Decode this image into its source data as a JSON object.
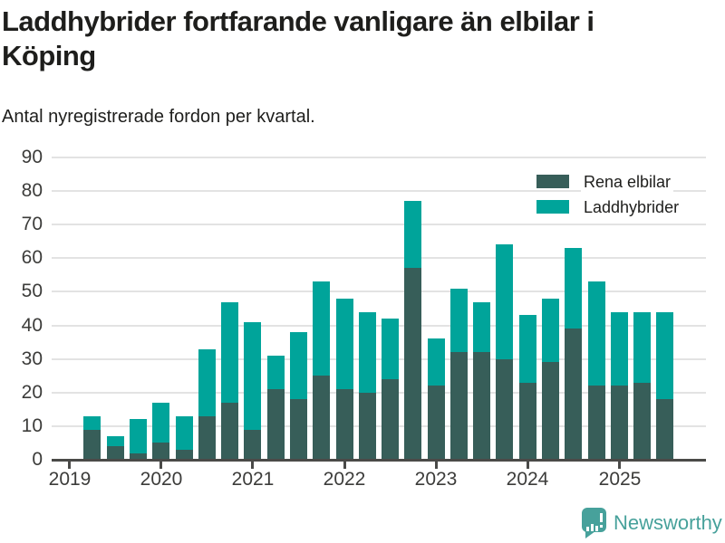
{
  "page": {
    "title_lines": [
      "Laddhybrider fortfarande vanligare än elbilar i",
      "Köping"
    ],
    "subtitle": "Antal nyregistrerade fordon per kvartal."
  },
  "footer": {
    "brand": "Newsworthy"
  },
  "colors": {
    "electric": "#375e59",
    "hybrid": "#00a49a",
    "logo": "#47a19b",
    "gridline": "#e3e3e3",
    "axis": "#4a4a48",
    "title_text": "#1e1e1c",
    "axis_text": "#3c3c3a"
  },
  "chart_data": {
    "type": "bar",
    "stacked": true,
    "title": "Laddhybrider fortfarande vanligare än elbilar i Köping",
    "subtitle": "Antal nyregistrerade fordon per kvartal.",
    "categories": [
      "2019-Q2",
      "2019-Q3",
      "2019-Q4",
      "2020-Q1",
      "2020-Q2",
      "2020-Q3",
      "2020-Q4",
      "2021-Q1",
      "2021-Q2",
      "2021-Q3",
      "2021-Q4",
      "2022-Q1",
      "2022-Q2",
      "2022-Q3",
      "2022-Q4",
      "2023-Q1",
      "2023-Q2",
      "2023-Q3",
      "2023-Q4",
      "2024-Q1",
      "2024-Q2",
      "2024-Q3",
      "2024-Q4",
      "2025-Q1",
      "2025-Q2",
      "2025-Q3"
    ],
    "series": [
      {
        "name": "Rena elbilar",
        "color": "#375e59",
        "values": [
          9,
          4,
          2,
          5,
          3,
          13,
          17,
          9,
          21,
          18,
          25,
          21,
          20,
          24,
          57,
          22,
          32,
          32,
          30,
          23,
          29,
          39,
          22,
          22,
          23,
          18
        ]
      },
      {
        "name": "Laddhybrider",
        "color": "#00a49a",
        "values": [
          4,
          3,
          10,
          12,
          10,
          20,
          30,
          32,
          10,
          20,
          28,
          27,
          24,
          18,
          20,
          14,
          19,
          15,
          34,
          20,
          19,
          24,
          31,
          22,
          21,
          26
        ]
      }
    ],
    "stack_totals": [
      13,
      7,
      12,
      17,
      13,
      33,
      47,
      41,
      31,
      38,
      53,
      48,
      44,
      42,
      77,
      36,
      51,
      47,
      64,
      43,
      48,
      63,
      53,
      44,
      44,
      44
    ],
    "y_ticks": [
      0,
      10,
      20,
      30,
      40,
      50,
      60,
      70,
      80,
      90
    ],
    "ylim": [
      0,
      90
    ],
    "x_years": [
      2019,
      2020,
      2021,
      2022,
      2023,
      2024,
      2025
    ],
    "x_domain": [
      "2019-Q1",
      "2025-Q4"
    ],
    "xlabel": "",
    "ylabel": "",
    "grid": "horizontal",
    "legend_position": "top-right"
  }
}
